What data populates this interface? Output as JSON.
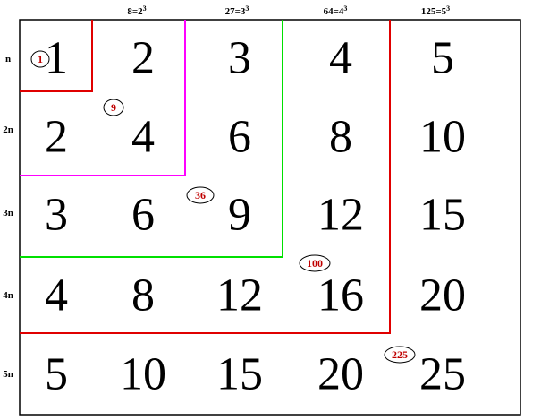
{
  "top_labels": [
    {
      "base": "8=2",
      "exp": "3"
    },
    {
      "base": "27=3",
      "exp": "3"
    },
    {
      "base": "64=4",
      "exp": "3"
    },
    {
      "base": "125=5",
      "exp": "3"
    }
  ],
  "row_labels": [
    "n",
    "2n",
    "3n",
    "4n",
    "5n"
  ],
  "table": {
    "rows": [
      [
        "1",
        "2",
        "3",
        "4",
        "5"
      ],
      [
        "2",
        "4",
        "6",
        "8",
        "10"
      ],
      [
        "3",
        "6",
        "9",
        "12",
        "15"
      ],
      [
        "4",
        "8",
        "12",
        "16",
        "20"
      ],
      [
        "5",
        "10",
        "15",
        "20",
        "25"
      ]
    ]
  },
  "squares": [
    "1",
    "9",
    "36",
    "100",
    "225"
  ]
}
